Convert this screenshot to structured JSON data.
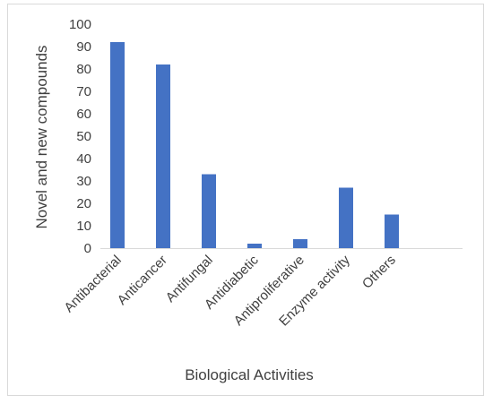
{
  "chart_data": {
    "type": "bar",
    "title": "",
    "xlabel": "Biological Activities",
    "ylabel": "Novel and new compounds",
    "categories": [
      "Antibacterial",
      "Anticancer",
      "Antifungal",
      "Antidiabetic",
      "Antiproliferative",
      "Enzyme activity",
      "Others"
    ],
    "values": [
      92,
      82,
      33,
      2,
      4,
      27,
      15
    ],
    "ylim": [
      0,
      100
    ],
    "yticks": [
      0,
      10,
      20,
      30,
      40,
      50,
      60,
      70,
      80,
      90,
      100
    ],
    "grid": false,
    "legend": "none",
    "bar_color": "#4472c4",
    "axis_color": "#d9d9d9"
  }
}
